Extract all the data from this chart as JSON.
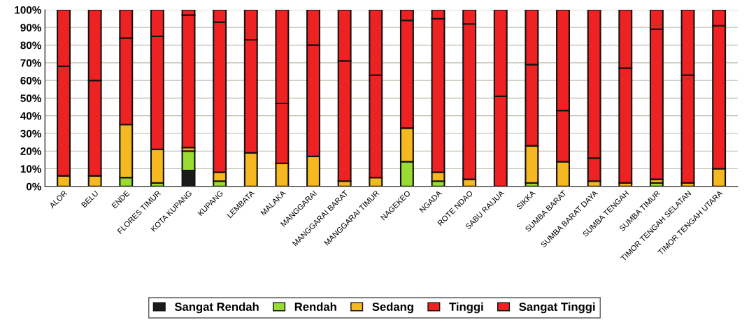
{
  "chart_data": {
    "type": "bar",
    "stacked": true,
    "grid": "y",
    "legend": "bottom",
    "categories": [
      "ALOR",
      "BELU",
      "ENDE",
      "FLORES TIMUR",
      "KOTA KUPANG",
      "KUPANG",
      "LEMBATA",
      "MALAKA",
      "MANGGARAI",
      "MANGGARAI BARAT",
      "MANGGARAI TIMUR",
      "NAGEKEO",
      "NGADA",
      "ROTE NDAO",
      "SABU RAIJUA",
      "SIKKA",
      "SUMBA BARAT",
      "SUMBA BARAT DAYA",
      "SUMBA TENGAH",
      "SUMBA TIMUR",
      "TIMOR TENGAH SELATAN",
      "TIMOR TENGAH UTARA"
    ],
    "ylim": [
      0,
      100
    ],
    "yticks": [
      {
        "value": 0,
        "label": "0%"
      },
      {
        "value": 10,
        "label": "10%"
      },
      {
        "value": 20,
        "label": "20%"
      },
      {
        "value": 30,
        "label": "30%"
      },
      {
        "value": 40,
        "label": "40%"
      },
      {
        "value": 50,
        "label": "50%"
      },
      {
        "value": 60,
        "label": "60%"
      },
      {
        "value": 70,
        "label": "70%"
      },
      {
        "value": 80,
        "label": "80%"
      },
      {
        "value": 90,
        "label": "90%"
      },
      {
        "value": 100,
        "label": "100%"
      }
    ],
    "series": [
      {
        "name": "Sangat Rendah",
        "color": "#1a1a1a",
        "values": [
          0,
          0,
          0,
          0,
          9,
          0,
          0,
          0,
          0,
          0,
          0,
          0,
          0,
          0,
          0,
          0,
          0,
          0,
          0,
          0,
          0,
          0
        ]
      },
      {
        "name": "Rendah",
        "color": "#99dd33",
        "values": [
          0,
          0,
          5,
          2,
          11,
          3,
          0,
          0,
          0,
          0,
          0,
          14,
          3,
          0,
          0,
          2,
          0,
          0,
          0,
          2,
          0,
          0
        ]
      },
      {
        "name": "Sedang",
        "color": "#f5b820",
        "values": [
          6,
          6,
          30,
          19,
          2,
          5,
          19,
          13,
          17,
          3,
          5,
          19,
          5,
          4,
          0,
          21,
          14,
          3,
          2,
          2,
          2,
          10
        ]
      },
      {
        "name": "Tinggi",
        "color": "#ee2222",
        "values": [
          62,
          54,
          49,
          64,
          75,
          85,
          64,
          34,
          63,
          68,
          58,
          61,
          87,
          88,
          51,
          46,
          29,
          13,
          65,
          85,
          61,
          81
        ]
      },
      {
        "name": "Sangat Tinggi",
        "color": "#ee2222",
        "values": [
          32,
          40,
          16,
          15,
          3,
          7,
          17,
          53,
          20,
          29,
          37,
          6,
          5,
          8,
          49,
          31,
          57,
          84,
          33,
          11,
          37,
          9
        ]
      }
    ]
  }
}
